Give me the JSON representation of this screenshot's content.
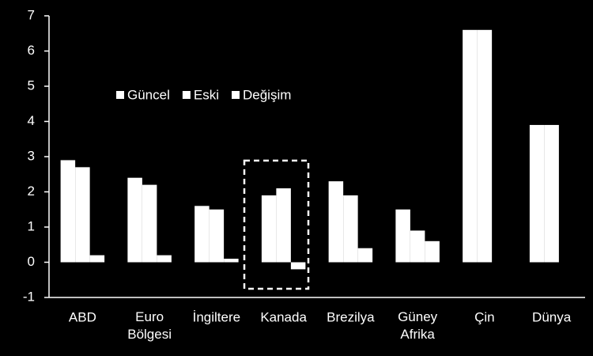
{
  "chart_data": {
    "type": "bar",
    "categories": [
      "ABD",
      "Euro Bölgesi",
      "İngiltere",
      "Kanada",
      "Brezilya",
      "Güney Afrika",
      "Çin",
      "Dünya"
    ],
    "series": [
      {
        "name": "Güncel",
        "color": "#ffffff",
        "values": [
          2.9,
          2.4,
          1.6,
          1.9,
          2.3,
          1.5,
          6.6,
          3.9
        ]
      },
      {
        "name": "Eski",
        "color": "#ffffff",
        "values": [
          2.7,
          2.2,
          1.5,
          2.1,
          1.9,
          0.9,
          6.6,
          3.9
        ]
      },
      {
        "name": "Değişim",
        "color": "#ffffff",
        "values": [
          0.2,
          0.2,
          0.1,
          -0.2,
          0.4,
          0.6,
          null,
          null
        ]
      }
    ],
    "ylim": [
      -1,
      7
    ],
    "yticks": [
      -1,
      0,
      1,
      2,
      3,
      4,
      5,
      6,
      7
    ],
    "grid": false
  }
}
